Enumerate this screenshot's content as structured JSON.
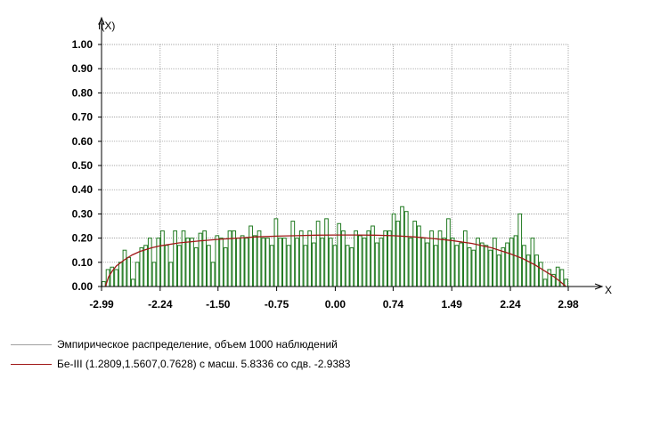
{
  "chart_data": {
    "type": "bar",
    "y_axis_label": "f(X)",
    "x_axis_label": "X",
    "ylim": [
      0,
      1.0
    ],
    "xlim": [
      -2.99,
      2.98
    ],
    "y_ticks": [
      "1.00",
      "0.90",
      "0.80",
      "0.70",
      "0.60",
      "0.50",
      "0.40",
      "0.30",
      "0.20",
      "0.10",
      "0.00"
    ],
    "x_ticks": [
      "-2.99",
      "-2.24",
      "-1.50",
      "-0.75",
      "0.00",
      "0.74",
      "1.49",
      "2.24",
      "2.98"
    ],
    "x_tick_values": [
      -2.99,
      -2.24,
      -1.5,
      -0.75,
      0.0,
      0.74,
      1.49,
      2.24,
      2.98
    ],
    "grid": true,
    "histogram": {
      "name": "Эмпирическое распределение, объем 1000 наблюдений",
      "bin_width": 0.0597,
      "values": [
        0.02,
        0.07,
        0.08,
        0.07,
        0.1,
        0.15,
        0.12,
        0.03,
        0.1,
        0.16,
        0.17,
        0.2,
        0.1,
        0.2,
        0.23,
        0.17,
        0.1,
        0.23,
        0.17,
        0.23,
        0.2,
        0.2,
        0.16,
        0.22,
        0.23,
        0.17,
        0.1,
        0.21,
        0.2,
        0.16,
        0.23,
        0.23,
        0.2,
        0.21,
        0.2,
        0.25,
        0.21,
        0.23,
        0.2,
        0.2,
        0.17,
        0.28,
        0.2,
        0.2,
        0.17,
        0.27,
        0.2,
        0.23,
        0.17,
        0.23,
        0.18,
        0.27,
        0.2,
        0.28,
        0.2,
        0.17,
        0.26,
        0.23,
        0.17,
        0.16,
        0.23,
        0.21,
        0.2,
        0.23,
        0.25,
        0.18,
        0.2,
        0.23,
        0.23,
        0.3,
        0.27,
        0.33,
        0.31,
        0.2,
        0.27,
        0.25,
        0.2,
        0.18,
        0.23,
        0.17,
        0.23,
        0.2,
        0.28,
        0.2,
        0.17,
        0.18,
        0.23,
        0.16,
        0.15,
        0.2,
        0.18,
        0.17,
        0.15,
        0.2,
        0.13,
        0.16,
        0.18,
        0.2,
        0.21,
        0.3,
        0.17,
        0.13,
        0.2,
        0.13,
        0.1,
        0.03,
        0.07,
        0.05,
        0.08,
        0.07,
        0.03
      ]
    },
    "fitted_curve": {
      "name": "Бе-III (1.2809,1.5607,0.7628) с масш. 5.8336 со сдв. -2.9383",
      "x": [
        -2.94,
        -2.9,
        -2.85,
        -2.8,
        -2.7,
        -2.6,
        -2.5,
        -2.35,
        -2.24,
        -2.0,
        -1.75,
        -1.5,
        -1.25,
        -1.0,
        -0.75,
        -0.5,
        -0.25,
        0.0,
        0.25,
        0.5,
        0.74,
        1.0,
        1.25,
        1.49,
        1.75,
        2.0,
        2.24,
        2.4,
        2.55,
        2.7,
        2.8,
        2.88,
        2.95
      ],
      "y": [
        0.0,
        0.04,
        0.065,
        0.085,
        0.11,
        0.13,
        0.145,
        0.16,
        0.168,
        0.18,
        0.188,
        0.195,
        0.2,
        0.205,
        0.208,
        0.21,
        0.212,
        0.213,
        0.213,
        0.212,
        0.21,
        0.205,
        0.198,
        0.19,
        0.178,
        0.16,
        0.135,
        0.115,
        0.09,
        0.06,
        0.04,
        0.02,
        0.0
      ]
    },
    "colors": {
      "histogram_bar": "#217a21",
      "histogram_legend": "#a0a0a0",
      "curve": "#a01818",
      "grid": "#8a8a8a",
      "axis": "#000000"
    },
    "legend_position": "bottom-left"
  }
}
